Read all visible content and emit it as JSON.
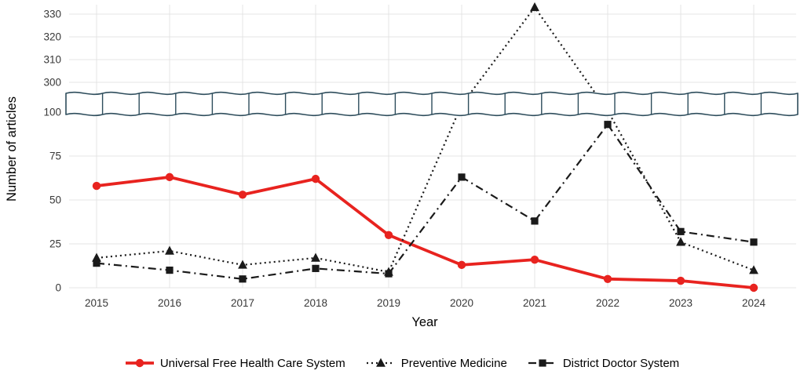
{
  "figure": {
    "background": "#ffffff"
  },
  "colors": {
    "red_series": "#e8231f",
    "black_series": "#1a1a1a",
    "axis_break_band": "#2e4d5c",
    "gridline": "#e4e4e4",
    "tick_text": "#383838",
    "axis_title_text": "#000000"
  },
  "chart_data": {
    "type": "line",
    "xlabel": "Year",
    "ylabel": "Number of articles",
    "categories": [
      "2015",
      "2016",
      "2017",
      "2018",
      "2019",
      "2020",
      "2021",
      "2022",
      "2023",
      "2024"
    ],
    "y_axis": {
      "lower_ticks": [
        0,
        25,
        50,
        75,
        100
      ],
      "upper_ticks": [
        300,
        310,
        320,
        330
      ],
      "break": {
        "from": 100,
        "to": 300
      },
      "lower_range": [
        0,
        100
      ],
      "upper_range": [
        300,
        335
      ]
    },
    "grid": true,
    "legend_position": "bottom",
    "series": [
      {
        "label": "Universal Free Health Care System",
        "color": "#e8231f",
        "line": "solid",
        "marker": "circle",
        "values": [
          58,
          63,
          53,
          62,
          30,
          13,
          16,
          5,
          4,
          0
        ]
      },
      {
        "label": "Preventive Medicine",
        "color": "#1a1a1a",
        "line": "dotted",
        "marker": "triangle",
        "values": [
          17,
          21,
          13,
          17,
          9,
          150,
          333,
          110,
          26,
          10
        ]
      },
      {
        "label": "District Doctor System",
        "color": "#1a1a1a",
        "line": "dashdot",
        "marker": "square",
        "values": [
          14,
          10,
          5,
          11,
          8,
          63,
          38,
          93,
          32,
          26
        ]
      }
    ]
  }
}
